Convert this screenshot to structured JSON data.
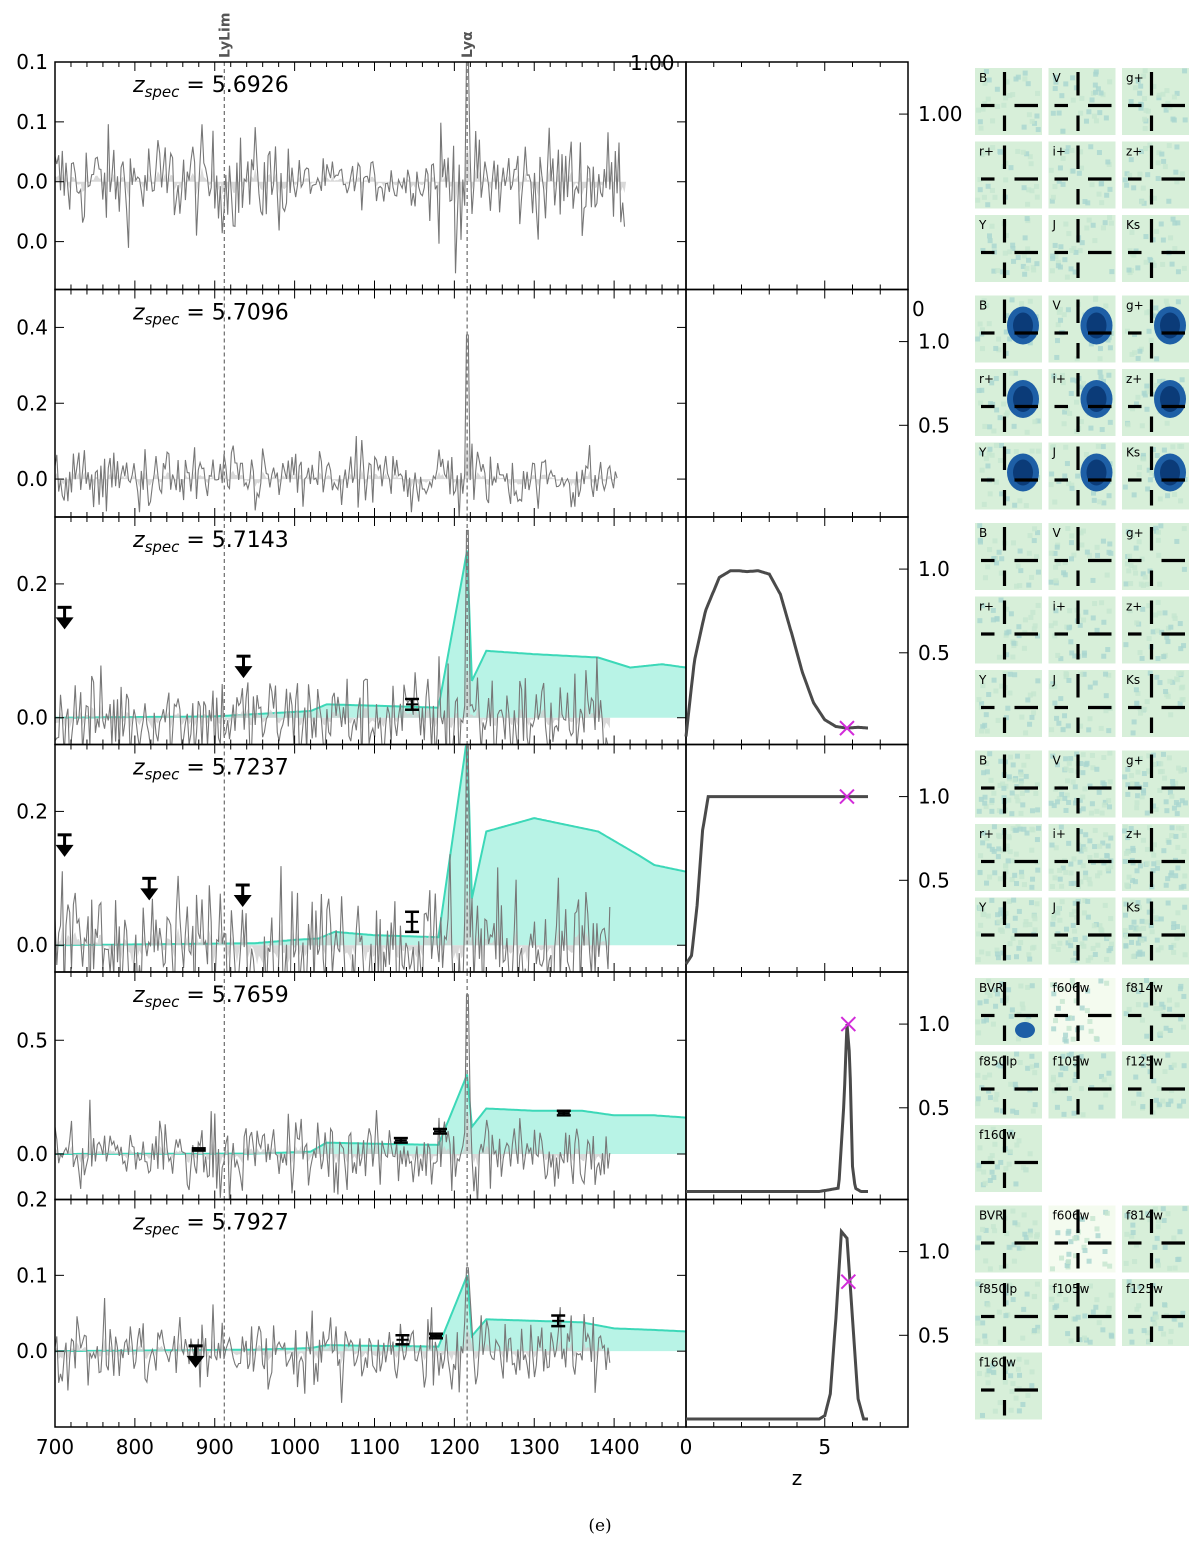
{
  "figure": {
    "caption": "(e)",
    "marker_color": "#d22bd9",
    "model_color": "#3cd8b8",
    "model_fill": "#b8f3e6",
    "spectrum_color": "#777777",
    "pdz_color": "#4a4a4a"
  },
  "chart_data": {
    "type": "line",
    "title": "",
    "line_labels": [
      {
        "label": "LyLim",
        "x": 912
      },
      {
        "label": "Lyα",
        "x": 1216
      }
    ],
    "spectrum_axis": {
      "xlabel": "",
      "xlim": [
        700,
        1490
      ],
      "xticks": [
        "700",
        "800",
        "900",
        "1000",
        "1100",
        "1200",
        "1300",
        "1400"
      ]
    },
    "pdz_axis": {
      "xlabel": "z",
      "xlim": [
        0,
        8.0
      ],
      "xticks": [
        "0",
        "5"
      ]
    },
    "panels": [
      {
        "zspec_label": "z",
        "zspec_sub": "spec",
        "zspec_value": " = 5.6926",
        "ylim": [
          -0.09,
          0.1
        ],
        "yticks": [
          {
            "v": 0.1,
            "t": "0.1"
          },
          {
            "v": 0.05,
            "t": "0.1"
          },
          {
            "v": 0.0,
            "t": "0.0"
          },
          {
            "v": -0.05,
            "t": "0.0"
          }
        ],
        "noise": 0.03,
        "peak": 0.105,
        "has_model": false,
        "model": [],
        "upper_limits": [],
        "photometry": [],
        "pdz": null,
        "right_ticks": [
          {
            "v": 1.0,
            "t": "1.00"
          }
        ],
        "stamps": [
          "B",
          "V",
          "g+",
          "r+",
          "i+",
          "z+",
          "Y",
          "J",
          "Ks"
        ],
        "stamp_style": "faint"
      },
      {
        "zspec_label": "z",
        "zspec_sub": "spec",
        "zspec_value": " = 5.7096",
        "ylim": [
          -0.1,
          0.5
        ],
        "yticks": [
          {
            "v": 0.4,
            "t": "0.4"
          },
          {
            "v": 0.2,
            "t": "0.2"
          },
          {
            "v": 0.0,
            "t": "0.0"
          }
        ],
        "noise": 0.06,
        "peak": 0.38,
        "has_model": false,
        "model": [],
        "upper_limits": [],
        "photometry": [],
        "pdz": null,
        "right_ticks": [
          {
            "v": 1.0,
            "t": "1.0"
          },
          {
            "v": 0.5,
            "t": "0.5"
          }
        ],
        "stamps": [
          "B",
          "V",
          "g+",
          "r+",
          "i+",
          "z+",
          "Y",
          "J",
          "Ks"
        ],
        "stamp_style": "galaxy"
      },
      {
        "zspec_label": "z",
        "zspec_sub": "spec",
        "zspec_value": " = 5.7143",
        "ylim": [
          -0.04,
          0.3
        ],
        "yticks": [
          {
            "v": 0.2,
            "t": "0.2"
          },
          {
            "v": 0.0,
            "t": "0.0"
          }
        ],
        "noise": 0.05,
        "peak": 0.28,
        "has_model": true,
        "model": [
          [
            700,
            0.0
          ],
          [
            900,
            0.002
          ],
          [
            990,
            0.008
          ],
          [
            1020,
            0.01
          ],
          [
            1040,
            0.02
          ],
          [
            1100,
            0.018
          ],
          [
            1180,
            0.015
          ],
          [
            1216,
            0.25
          ],
          [
            1222,
            0.055
          ],
          [
            1240,
            0.1
          ],
          [
            1300,
            0.095
          ],
          [
            1380,
            0.09
          ],
          [
            1420,
            0.075
          ],
          [
            1460,
            0.08
          ],
          [
            1490,
            0.075
          ]
        ],
        "upper_limits": [
          [
            712,
            0.165
          ],
          [
            936,
            0.092
          ]
        ],
        "photometry": [
          [
            1147,
            0.02,
            0.008
          ]
        ],
        "pdz": {
          "z": [
            0,
            0.3,
            0.7,
            1.2,
            1.6,
            1.9,
            2.2,
            2.6,
            3.0,
            3.4,
            3.8,
            4.2,
            4.6,
            5.0,
            5.4,
            5.8,
            6.2,
            6.6
          ],
          "p": [
            0.0,
            0.45,
            0.75,
            0.95,
            0.99,
            0.99,
            0.985,
            0.99,
            0.97,
            0.85,
            0.62,
            0.38,
            0.2,
            0.1,
            0.06,
            0.05,
            0.055,
            0.05
          ],
          "marker": [
            5.8,
            0.05
          ]
        },
        "right_ticks": [
          {
            "v": 1.0,
            "t": "1.0"
          },
          {
            "v": 0.5,
            "t": "0.5"
          }
        ],
        "stamps": [
          "B",
          "V",
          "g+",
          "r+",
          "i+",
          "z+",
          "Y",
          "J",
          "Ks"
        ],
        "stamp_style": "faint"
      },
      {
        "zspec_label": "z",
        "zspec_sub": "spec",
        "zspec_value": " = 5.7237",
        "ylim": [
          -0.04,
          0.3
        ],
        "yticks": [
          {
            "v": 0.2,
            "t": "0.2"
          },
          {
            "v": 0.0,
            "t": "0.0"
          }
        ],
        "noise": 0.07,
        "peak": 0.3,
        "has_model": true,
        "model": [
          [
            700,
            0.0
          ],
          [
            950,
            0.003
          ],
          [
            1000,
            0.008
          ],
          [
            1030,
            0.01
          ],
          [
            1050,
            0.02
          ],
          [
            1100,
            0.015
          ],
          [
            1180,
            0.012
          ],
          [
            1216,
            0.31
          ],
          [
            1222,
            0.07
          ],
          [
            1240,
            0.17
          ],
          [
            1300,
            0.19
          ],
          [
            1380,
            0.17
          ],
          [
            1430,
            0.135
          ],
          [
            1450,
            0.12
          ],
          [
            1490,
            0.11
          ]
        ],
        "upper_limits": [
          [
            712,
            0.165
          ],
          [
            818,
            0.1
          ],
          [
            935,
            0.09
          ]
        ],
        "photometry": [
          [
            1147,
            0.035,
            0.015
          ]
        ],
        "pdz": {
          "z": [
            0,
            0.2,
            0.4,
            0.6,
            0.8,
            1.2,
            3,
            5,
            6.5
          ],
          "p": [
            0.0,
            0.05,
            0.35,
            0.8,
            1.0,
            1.0,
            1.0,
            1.0,
            1.0
          ],
          "marker": [
            5.8,
            1.0
          ]
        },
        "right_ticks": [
          {
            "v": 1.0,
            "t": "1.0"
          },
          {
            "v": 0.5,
            "t": "0.5"
          }
        ],
        "stamps": [
          "B",
          "V",
          "g+",
          "r+",
          "i+",
          "z+",
          "Y",
          "J",
          "Ks"
        ],
        "stamp_style": "noisy"
      },
      {
        "zspec_label": "z",
        "zspec_sub": "spec",
        "zspec_value": " = 5.7659",
        "ylim": [
          -0.2,
          0.8
        ],
        "yticks": [
          {
            "v": 0.5,
            "t": "0.5"
          },
          {
            "v": 0.0,
            "t": "0.0"
          }
        ],
        "noise": 0.12,
        "peak": 0.7,
        "has_model": true,
        "model": [
          [
            700,
            0.0
          ],
          [
            950,
            0.002
          ],
          [
            1020,
            0.01
          ],
          [
            1040,
            0.05
          ],
          [
            1100,
            0.045
          ],
          [
            1180,
            0.04
          ],
          [
            1216,
            0.35
          ],
          [
            1222,
            0.12
          ],
          [
            1240,
            0.2
          ],
          [
            1300,
            0.19
          ],
          [
            1360,
            0.19
          ],
          [
            1400,
            0.17
          ],
          [
            1450,
            0.17
          ],
          [
            1490,
            0.16
          ]
        ],
        "upper_limits": [],
        "photometry": [
          [
            880,
            0.02,
            0.005
          ],
          [
            1133,
            0.06,
            0.01
          ],
          [
            1182,
            0.1,
            0.01
          ],
          [
            1337,
            0.18,
            0.01
          ]
        ],
        "pdz": {
          "z": [
            0,
            4.8,
            5.5,
            5.7,
            5.8,
            5.9,
            6.0,
            6.1,
            6.3,
            8.0
          ],
          "p": [
            0.0,
            0.0,
            0.02,
            0.55,
            1.0,
            0.8,
            0.15,
            0.02,
            0.0,
            0.0
          ],
          "marker": [
            5.85,
            1.0
          ]
        },
        "right_ticks": [
          {
            "v": 1.0,
            "t": "1.0"
          },
          {
            "v": 0.5,
            "t": "0.5"
          }
        ],
        "stamps": [
          "BVR",
          "f606w",
          "f814w",
          "f850lp",
          "f105w",
          "f125w",
          "f160w"
        ],
        "stamp_style": "hst"
      },
      {
        "zspec_label": "z",
        "zspec_sub": "spec",
        "zspec_value": " = 5.7927",
        "ylim": [
          -0.1,
          0.2
        ],
        "yticks": [
          {
            "v": 0.2,
            "t": "0.2"
          },
          {
            "v": 0.1,
            "t": "0.1"
          },
          {
            "v": 0.0,
            "t": "0.0"
          }
        ],
        "noise": 0.035,
        "peak": 0.11,
        "has_model": true,
        "model": [
          [
            700,
            0.0
          ],
          [
            950,
            0.002
          ],
          [
            1020,
            0.004
          ],
          [
            1040,
            0.008
          ],
          [
            1100,
            0.007
          ],
          [
            1180,
            0.006
          ],
          [
            1216,
            0.1
          ],
          [
            1222,
            0.02
          ],
          [
            1240,
            0.042
          ],
          [
            1300,
            0.04
          ],
          [
            1360,
            0.038
          ],
          [
            1400,
            0.03
          ],
          [
            1450,
            0.028
          ],
          [
            1490,
            0.026
          ]
        ],
        "upper_limits": [
          [
            876,
            0.007
          ]
        ],
        "photometry": [
          [
            1135,
            0.015,
            0.006
          ],
          [
            1177,
            0.02,
            0.003
          ],
          [
            1330,
            0.04,
            0.007
          ]
        ],
        "pdz": {
          "z": [
            0,
            4.8,
            5.0,
            5.2,
            5.4,
            5.6,
            5.8,
            6.0,
            6.2,
            6.4,
            8.0
          ],
          "p": [
            0.0,
            0.0,
            0.02,
            0.15,
            0.6,
            1.12,
            1.08,
            0.6,
            0.12,
            0.0,
            0.0
          ],
          "marker": [
            5.85,
            0.82
          ]
        },
        "right_ticks": [
          {
            "v": 1.0,
            "t": "1.0"
          },
          {
            "v": 0.5,
            "t": "0.5"
          }
        ],
        "stamps": [
          "BVR",
          "f606w",
          "f814w",
          "f850lp",
          "f105w",
          "f125w",
          "f160w"
        ],
        "stamp_style": "hst"
      }
    ]
  }
}
